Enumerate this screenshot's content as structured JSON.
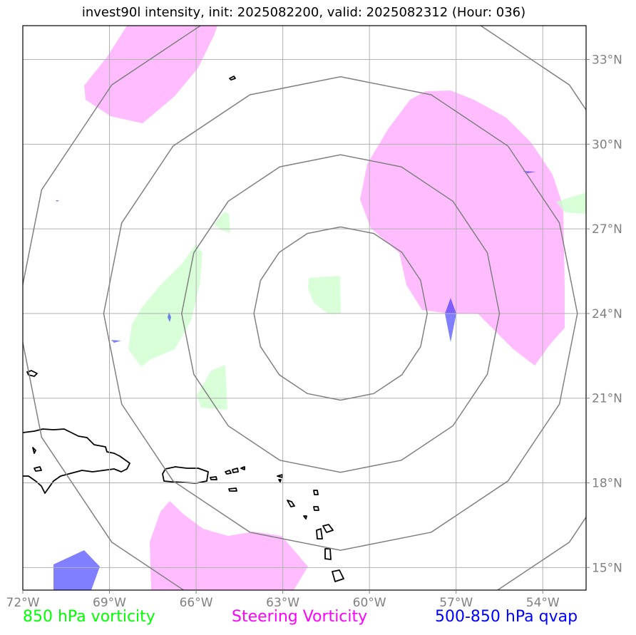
{
  "title": "invest90l intensity, init: 2025082200, valid: 2025082312 (Hour: 036)",
  "map": {
    "lon_range": [
      -72.0,
      -52.5
    ],
    "lat_range": [
      14.2,
      34.2
    ],
    "lon_ticks": [
      {
        "value": -72,
        "label": "72°W"
      },
      {
        "value": -69,
        "label": "69°W"
      },
      {
        "value": -66,
        "label": "66°W"
      },
      {
        "value": -63,
        "label": "63°W"
      },
      {
        "value": -60,
        "label": "60°W"
      },
      {
        "value": -57,
        "label": "57°W"
      },
      {
        "value": -54,
        "label": "54°W"
      }
    ],
    "lat_ticks": [
      {
        "value": 33,
        "label": "33°N"
      },
      {
        "value": 30,
        "label": "30°N"
      },
      {
        "value": 27,
        "label": "27°N"
      },
      {
        "value": 24,
        "label": "24°N"
      },
      {
        "value": 21,
        "label": "21°N"
      },
      {
        "value": 18,
        "label": "18°N"
      },
      {
        "value": 15,
        "label": "15°N"
      }
    ],
    "range_rings_center": {
      "lon": -61.0,
      "lat": 24.0
    },
    "range_rings_radius_deg": [
      3.0,
      5.5,
      8.2,
      11.2
    ],
    "grid": true,
    "colors": {
      "vorticity_850": "#ccffcc",
      "steering_vorticity": "#ff99ff",
      "qvap": "#0000ff",
      "grid": "#b0b0b0",
      "rings": "#808080",
      "coast": "#000000"
    }
  },
  "legend": {
    "vorticity_850": "850 hPa vorticity",
    "steering_vorticity": "Steering Vorticity",
    "qvap": "500-850 hPa qvap"
  }
}
